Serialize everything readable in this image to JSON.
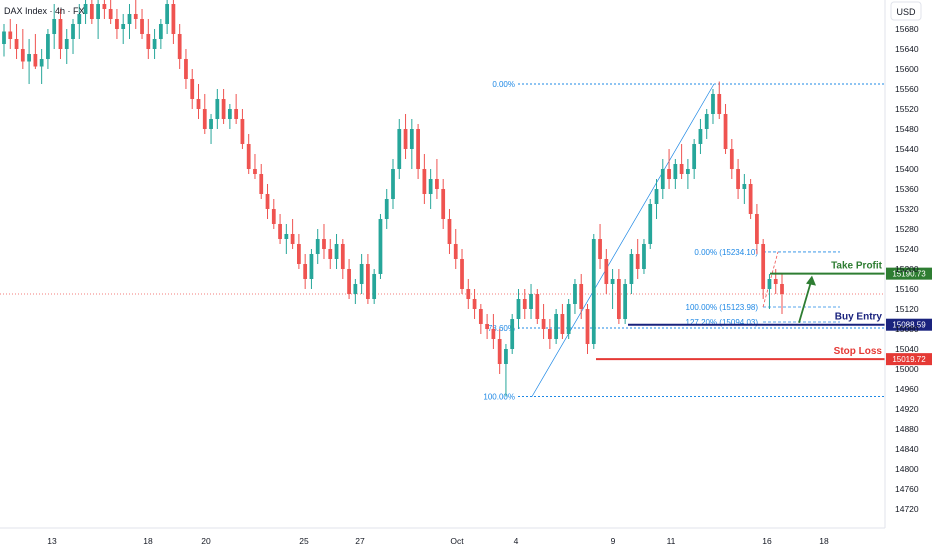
{
  "chart_data": {
    "type": "candlestick",
    "title": "DAX Index · 4h · FX",
    "currency": "USD",
    "y_range": [
      14700,
      15740
    ],
    "y_ticks": [
      15680,
      15640,
      15600,
      15560,
      15520,
      15480,
      15440,
      15400,
      15360,
      15320,
      15280,
      15240,
      15200,
      15160,
      15120,
      15080,
      15040,
      15000,
      14960,
      14920,
      14880,
      14840,
      14800,
      14760,
      14720
    ],
    "x_ticks": [
      "13",
      "18",
      "20",
      "25",
      "27",
      "Oct",
      "4",
      "9",
      "11",
      "16",
      "18"
    ],
    "colors": {
      "up": "#26a69a",
      "down": "#ef5350",
      "take_profit": "#2e7d32",
      "buy_entry": "#1a237e",
      "stop_loss": "#e53935",
      "fib": "#1e88e5"
    },
    "fibonacci_left": [
      {
        "label": "0.00%",
        "price": 15570
      },
      {
        "label": "78.60%",
        "price": 15082
      },
      {
        "label": "100.00%",
        "price": 14945
      }
    ],
    "fibonacci_right": [
      {
        "label": "0.00% (15234.10)",
        "price": 15234.1
      },
      {
        "label": "100.00% (15123.98)",
        "price": 15123.98
      },
      {
        "label": "127.20% (15094.03)",
        "price": 15094.03
      }
    ],
    "levels": [
      {
        "name": "Take Profit",
        "price": 15190.73,
        "price_label": "15190.73",
        "color": "#2e7d32"
      },
      {
        "name": "Buy Entry",
        "price": 15088.59,
        "price_label": "15088.59",
        "color": "#1a237e"
      },
      {
        "name": "Stop Loss",
        "price": 15019.72,
        "price_label": "15019.72",
        "color": "#e53935"
      }
    ],
    "current_price": 15150,
    "candles": [
      [
        15650,
        15690,
        15625,
        15675
      ],
      [
        15675,
        15700,
        15640,
        15660
      ],
      [
        15660,
        15690,
        15620,
        15640
      ],
      [
        15640,
        15680,
        15600,
        15615
      ],
      [
        15615,
        15660,
        15570,
        15630
      ],
      [
        15630,
        15670,
        15600,
        15605
      ],
      [
        15605,
        15640,
        15570,
        15620
      ],
      [
        15620,
        15680,
        15600,
        15670
      ],
      [
        15670,
        15730,
        15640,
        15700
      ],
      [
        15700,
        15720,
        15620,
        15640
      ],
      [
        15640,
        15680,
        15610,
        15660
      ],
      [
        15660,
        15700,
        15630,
        15690
      ],
      [
        15690,
        15730,
        15660,
        15710
      ],
      [
        15710,
        15740,
        15690,
        15730
      ],
      [
        15730,
        15740,
        15690,
        15700
      ],
      [
        15700,
        15740,
        15660,
        15730
      ],
      [
        15730,
        15740,
        15700,
        15720
      ],
      [
        15720,
        15740,
        15690,
        15700
      ],
      [
        15700,
        15720,
        15660,
        15680
      ],
      [
        15680,
        15710,
        15650,
        15690
      ],
      [
        15690,
        15730,
        15660,
        15710
      ],
      [
        15710,
        15740,
        15680,
        15700
      ],
      [
        15700,
        15720,
        15660,
        15670
      ],
      [
        15670,
        15700,
        15620,
        15640
      ],
      [
        15640,
        15680,
        15620,
        15660
      ],
      [
        15660,
        15700,
        15640,
        15690
      ],
      [
        15690,
        15740,
        15670,
        15730
      ],
      [
        15730,
        15740,
        15650,
        15670
      ],
      [
        15670,
        15690,
        15600,
        15620
      ],
      [
        15620,
        15640,
        15560,
        15580
      ],
      [
        15580,
        15600,
        15520,
        15540
      ],
      [
        15540,
        15570,
        15500,
        15520
      ],
      [
        15520,
        15550,
        15470,
        15480
      ],
      [
        15480,
        15510,
        15450,
        15500
      ],
      [
        15500,
        15560,
        15480,
        15540
      ],
      [
        15540,
        15560,
        15490,
        15500
      ],
      [
        15500,
        15530,
        15480,
        15520
      ],
      [
        15520,
        15550,
        15490,
        15500
      ],
      [
        15500,
        15520,
        15440,
        15450
      ],
      [
        15450,
        15470,
        15390,
        15400
      ],
      [
        15400,
        15430,
        15380,
        15390
      ],
      [
        15390,
        15410,
        15340,
        15350
      ],
      [
        15350,
        15370,
        15300,
        15320
      ],
      [
        15320,
        15340,
        15280,
        15290
      ],
      [
        15290,
        15310,
        15250,
        15260
      ],
      [
        15260,
        15290,
        15230,
        15270
      ],
      [
        15270,
        15300,
        15240,
        15250
      ],
      [
        15250,
        15270,
        15200,
        15210
      ],
      [
        15210,
        15230,
        15160,
        15180
      ],
      [
        15180,
        15240,
        15160,
        15230
      ],
      [
        15230,
        15280,
        15210,
        15260
      ],
      [
        15260,
        15290,
        15220,
        15240
      ],
      [
        15240,
        15260,
        15200,
        15220
      ],
      [
        15220,
        15270,
        15200,
        15250
      ],
      [
        15250,
        15260,
        15180,
        15200
      ],
      [
        15200,
        15220,
        15140,
        15150
      ],
      [
        15150,
        15180,
        15130,
        15170
      ],
      [
        15170,
        15230,
        15150,
        15210
      ],
      [
        15210,
        15230,
        15130,
        15140
      ],
      [
        15140,
        15200,
        15130,
        15190
      ],
      [
        15190,
        15310,
        15180,
        15300
      ],
      [
        15300,
        15360,
        15280,
        15340
      ],
      [
        15340,
        15420,
        15320,
        15400
      ],
      [
        15400,
        15500,
        15380,
        15480
      ],
      [
        15480,
        15510,
        15420,
        15440
      ],
      [
        15440,
        15500,
        15400,
        15480
      ],
      [
        15480,
        15490,
        15380,
        15400
      ],
      [
        15400,
        15430,
        15330,
        15350
      ],
      [
        15350,
        15400,
        15320,
        15380
      ],
      [
        15380,
        15420,
        15340,
        15360
      ],
      [
        15360,
        15380,
        15280,
        15300
      ],
      [
        15300,
        15320,
        15230,
        15250
      ],
      [
        15250,
        15280,
        15200,
        15220
      ],
      [
        15220,
        15240,
        15150,
        15160
      ],
      [
        15160,
        15180,
        15120,
        15140
      ],
      [
        15140,
        15160,
        15100,
        15120
      ],
      [
        15120,
        15130,
        15070,
        15090
      ],
      [
        15090,
        15110,
        15060,
        15080
      ],
      [
        15080,
        15110,
        15040,
        15060
      ],
      [
        15060,
        15080,
        14990,
        15010
      ],
      [
        15010,
        15050,
        14945,
        15040
      ],
      [
        15040,
        15110,
        15030,
        15100
      ],
      [
        15100,
        15160,
        15080,
        15140
      ],
      [
        15140,
        15160,
        15100,
        15120
      ],
      [
        15120,
        15170,
        15100,
        15150
      ],
      [
        15150,
        15160,
        15090,
        15100
      ],
      [
        15100,
        15130,
        15060,
        15080
      ],
      [
        15080,
        15100,
        15040,
        15060
      ],
      [
        15060,
        15120,
        15050,
        15110
      ],
      [
        15110,
        15130,
        15060,
        15070
      ],
      [
        15070,
        15140,
        15060,
        15130
      ],
      [
        15130,
        15180,
        15110,
        15170
      ],
      [
        15170,
        15190,
        15100,
        15120
      ],
      [
        15120,
        15130,
        15030,
        15050
      ],
      [
        15050,
        15270,
        15040,
        15260
      ],
      [
        15260,
        15290,
        15200,
        15220
      ],
      [
        15220,
        15240,
        15150,
        15170
      ],
      [
        15170,
        15200,
        15120,
        15180
      ],
      [
        15180,
        15200,
        15090,
        15100
      ],
      [
        15100,
        15180,
        15090,
        15170
      ],
      [
        15170,
        15240,
        15150,
        15230
      ],
      [
        15230,
        15260,
        15180,
        15200
      ],
      [
        15200,
        15260,
        15190,
        15250
      ],
      [
        15250,
        15340,
        15240,
        15330
      ],
      [
        15330,
        15380,
        15300,
        15360
      ],
      [
        15360,
        15420,
        15340,
        15400
      ],
      [
        15400,
        15440,
        15360,
        15380
      ],
      [
        15380,
        15420,
        15360,
        15410
      ],
      [
        15410,
        15450,
        15380,
        15390
      ],
      [
        15390,
        15420,
        15360,
        15400
      ],
      [
        15400,
        15460,
        15380,
        15450
      ],
      [
        15450,
        15500,
        15430,
        15480
      ],
      [
        15480,
        15520,
        15460,
        15510
      ],
      [
        15510,
        15560,
        15490,
        15550
      ],
      [
        15550,
        15575,
        15500,
        15510
      ],
      [
        15510,
        15530,
        15430,
        15440
      ],
      [
        15440,
        15460,
        15380,
        15400
      ],
      [
        15400,
        15420,
        15340,
        15360
      ],
      [
        15360,
        15390,
        15330,
        15370
      ],
      [
        15370,
        15380,
        15300,
        15310
      ],
      [
        15310,
        15330,
        15230,
        15250
      ],
      [
        15250,
        15260,
        15140,
        15160
      ],
      [
        15160,
        15190,
        15120,
        15180
      ],
      [
        15180,
        15200,
        15150,
        15170
      ],
      [
        15170,
        15190,
        15110,
        15150
      ]
    ]
  }
}
